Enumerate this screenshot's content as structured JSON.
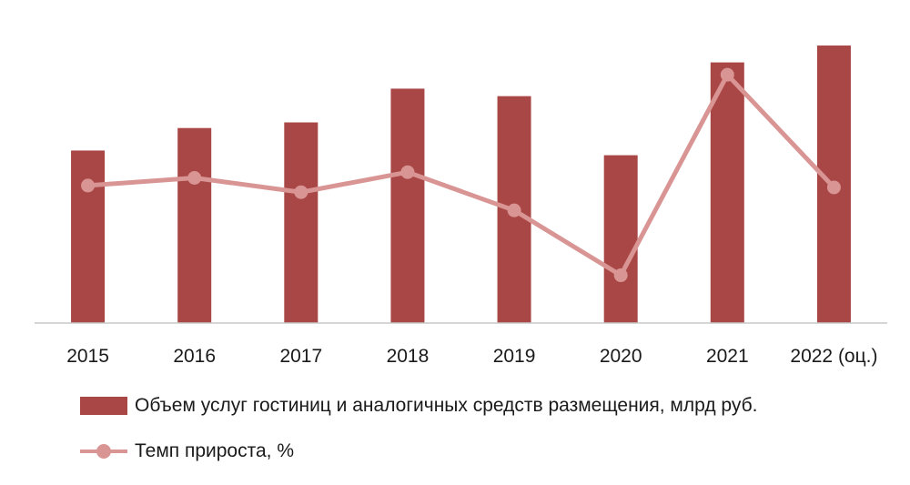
{
  "colors": {
    "bars": "#a84745",
    "line": "#d99594",
    "axis": "#c8c8c8"
  },
  "chart_data": {
    "type": "bar",
    "categories": [
      "2015",
      "2016",
      "2017",
      "2018",
      "2019",
      "2020",
      "2021",
      "2022 (оц.)"
    ],
    "series": [
      {
        "name": "Объем услуг гостиниц и аналогичных средств размещения, млрд руб.",
        "type": "bar",
        "values": [
          184,
          208,
          214,
          250,
          242,
          179,
          278,
          296
        ]
      },
      {
        "name": "Темп прироста, %",
        "type": "line",
        "axis": "secondary",
        "values": [
          10,
          14,
          6.5,
          17,
          -3,
          -37,
          68,
          9
        ]
      }
    ],
    "ylim": [
      0,
      330
    ],
    "y2lim": [
      -62,
      100
    ],
    "grid": false,
    "legend": "bottom"
  }
}
